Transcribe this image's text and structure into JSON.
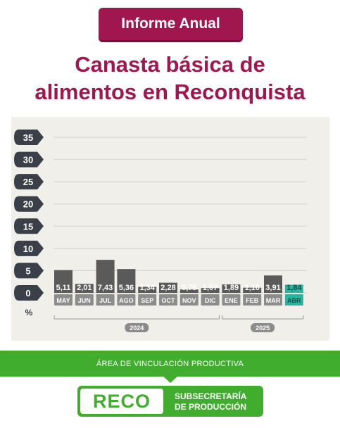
{
  "badge": "Informe Anual",
  "title_line1": "Canasta básica de",
  "title_line2": "alimentos en Reconquista",
  "footer": {
    "area": "ÁREA DE VINCULACIÓN PRODUCTIVA",
    "logo": "RECO",
    "sub_line1": "SUBSECRETARÍA",
    "sub_line2": "DE PRODUCCIÓN"
  },
  "colors": {
    "accent": "#a0174f",
    "bar": "#5a5a5a",
    "bar_highlight": "#2bb3a0",
    "green": "#41ad2e"
  },
  "chart_data": {
    "type": "bar",
    "categories": [
      "MAY",
      "JUN",
      "JUL",
      "AGO",
      "SEP",
      "OCT",
      "NOV",
      "DIC",
      "ENE",
      "FEB",
      "MAR",
      "ABR"
    ],
    "values": [
      5.11,
      2.01,
      7.43,
      5.36,
      1.34,
      2.28,
      0.75,
      1.07,
      1.89,
      1.16,
      3.91,
      1.84
    ],
    "value_labels": [
      "5,11",
      "2,01",
      "7,43",
      "5,36",
      "1,34",
      "2,28",
      "0,75",
      "1,07",
      "1,89",
      "1,16",
      "3,91",
      "1,84"
    ],
    "highlight_index": 11,
    "yticks": [
      0,
      5,
      10,
      15,
      20,
      25,
      30,
      35
    ],
    "ylim": [
      0,
      35
    ],
    "ylabel": "%",
    "groups": [
      {
        "label": "2024",
        "start": 0,
        "end": 7
      },
      {
        "label": "2025",
        "start": 8,
        "end": 11
      }
    ],
    "grid": true
  }
}
